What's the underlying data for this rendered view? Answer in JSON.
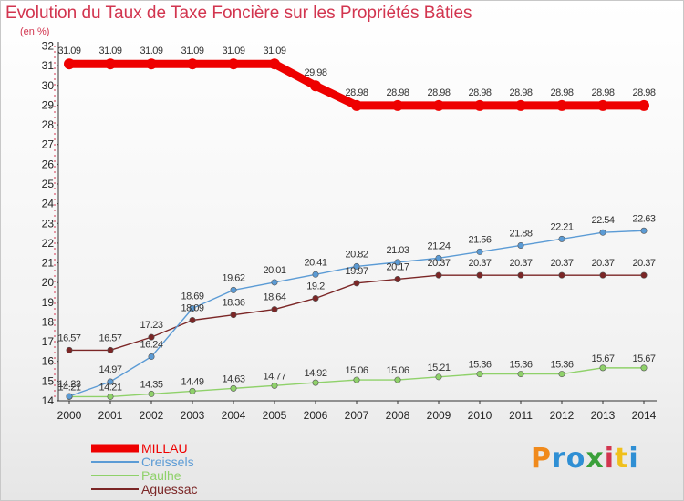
{
  "title": "Evolution du Taux de Taxe Foncière sur les Propriétés Bâties",
  "unit_label": "(en %)",
  "brand": {
    "text": "Proxiti",
    "letter_colors": [
      "#f08a1c",
      "#2f8fd4",
      "#2f8fd4",
      "#3aa03a",
      "#d2354f",
      "#f0c01c",
      "#2f8fd4"
    ]
  },
  "chart_data": {
    "type": "line",
    "title": "Evolution du Taux de Taxe Foncière sur les Propriétés Bâties",
    "ylabel": "(en %)",
    "xlabel": "",
    "x": [
      "2000",
      "2001",
      "2002",
      "2003",
      "2004",
      "2005",
      "2006",
      "2007",
      "2008",
      "2009",
      "2010",
      "2011",
      "2012",
      "2013",
      "2014"
    ],
    "y_ticks": [
      "14",
      "15",
      "16",
      "17",
      "18",
      "19",
      "20",
      "21",
      "22",
      "23",
      "24",
      "25",
      "26",
      "27",
      "28",
      "29",
      "30",
      "31",
      "32"
    ],
    "ylim": [
      14,
      32
    ],
    "legend_position": "bottom-left",
    "series": [
      {
        "name": "MILLAU",
        "color": "#ee0000",
        "values": [
          31.09,
          31.09,
          31.09,
          31.09,
          31.09,
          31.09,
          29.98,
          28.98,
          28.98,
          28.98,
          28.98,
          28.98,
          28.98,
          28.98,
          28.98
        ],
        "labels": [
          "31.09",
          "31.09",
          "31.09",
          "31.09",
          "31.09",
          "31.09",
          "29.98",
          "28.98",
          "28.98",
          "28.98",
          "28.98",
          "28.98",
          "28.98",
          "28.98",
          "28.98"
        ]
      },
      {
        "name": "Creissels",
        "color": "#5b9bd5",
        "values": [
          14.23,
          14.97,
          16.24,
          18.69,
          19.62,
          20.01,
          20.41,
          20.82,
          21.03,
          21.24,
          21.56,
          21.88,
          22.21,
          22.54,
          22.63
        ],
        "labels": [
          "14.23",
          "14.97",
          "16.24",
          "18.69",
          "19.62",
          "20.01",
          "20.41",
          "20.82",
          "21.03",
          "21.24",
          "21.56",
          "21.88",
          "22.21",
          "22.54",
          "22.63"
        ]
      },
      {
        "name": "Paulhe",
        "color": "#8fd16a",
        "values": [
          14.21,
          14.21,
          14.35,
          14.49,
          14.63,
          14.77,
          14.92,
          15.06,
          15.06,
          15.21,
          15.36,
          15.36,
          15.36,
          15.67,
          15.67
        ],
        "labels": [
          "14.21",
          "14.21",
          "14.35",
          "14.49",
          "14.63",
          "14.77",
          "14.92",
          "15.06",
          "15.06",
          "15.21",
          "15.36",
          "15.36",
          "15.36",
          "15.67",
          "15.67"
        ]
      },
      {
        "name": "Aguessac",
        "color": "#7b2626",
        "values": [
          16.57,
          16.57,
          17.23,
          18.09,
          18.36,
          18.64,
          19.2,
          19.97,
          20.17,
          20.37,
          20.37,
          20.37,
          20.37,
          20.37,
          20.37
        ],
        "labels": [
          "16.57",
          "16.57",
          "17.23",
          "18.09",
          "18.36",
          "18.64",
          "19.2",
          "19.97",
          "20.17",
          "20.37",
          "20.37",
          "20.37",
          "20.37",
          "20.37",
          "20.37"
        ]
      }
    ]
  }
}
